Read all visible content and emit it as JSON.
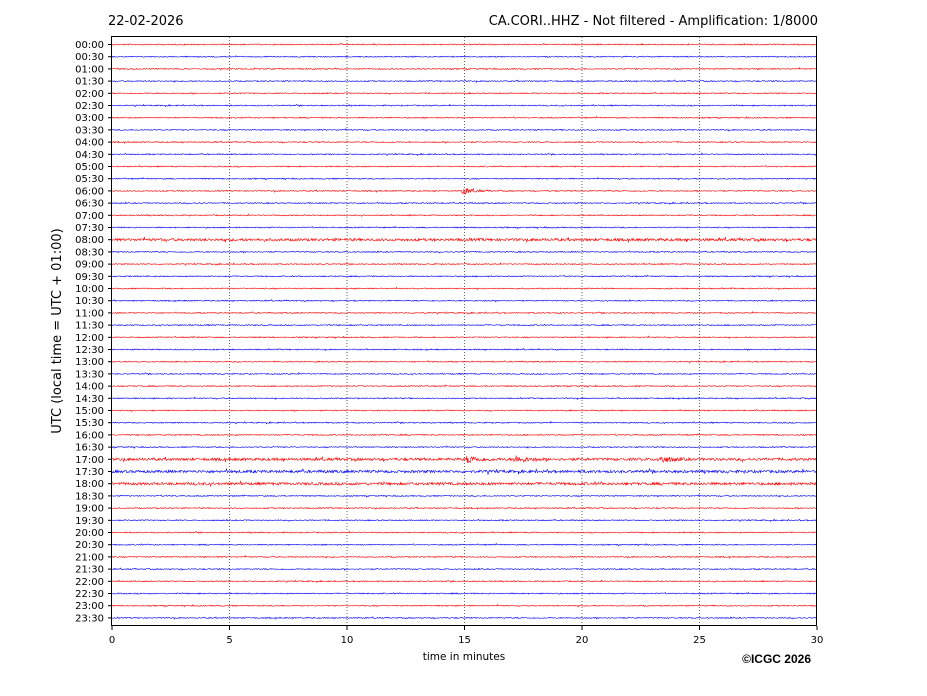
{
  "chart_data": {
    "type": "line",
    "title_left": "22-02-2026",
    "title_right": "CA.CORI..HHZ - Not filtered - Amplification: 1/8000",
    "xlabel": "time in minutes",
    "ylabel": "UTC (local time = UTC + 01:00)",
    "xlim": [
      0,
      30
    ],
    "x_ticks": [
      "0",
      "5",
      "10",
      "15",
      "20",
      "25",
      "30"
    ],
    "row_labels": [
      "00:00",
      "00:30",
      "01:00",
      "01:30",
      "02:00",
      "02:30",
      "03:00",
      "03:30",
      "04:00",
      "04:30",
      "05:00",
      "05:30",
      "06:00",
      "06:30",
      "07:00",
      "07:30",
      "08:00",
      "08:30",
      "09:00",
      "09:30",
      "10:00",
      "10:30",
      "11:00",
      "11:30",
      "12:00",
      "12:30",
      "13:00",
      "13:30",
      "14:00",
      "14:30",
      "15:00",
      "15:30",
      "16:00",
      "16:30",
      "17:00",
      "17:30",
      "18:00",
      "18:30",
      "19:00",
      "19:30",
      "20:00",
      "20:30",
      "21:00",
      "21:30",
      "22:00",
      "22:30",
      "23:00",
      "23:30"
    ],
    "trace_colors": [
      "#ff0000",
      "#0000ff"
    ],
    "grid": "vertical dotted at each 5 minutes",
    "events": [
      {
        "row": "17:00",
        "minute": 15.2
      },
      {
        "row": "17:00",
        "minute": 17.2
      },
      {
        "row": "17:00",
        "minute": 23.4
      },
      {
        "row": "06:00",
        "minute": 15.0
      }
    ],
    "noisy_rows": [
      "08:00",
      "17:00",
      "17:30",
      "18:00"
    ]
  },
  "copyright": "©ICGC 2026"
}
